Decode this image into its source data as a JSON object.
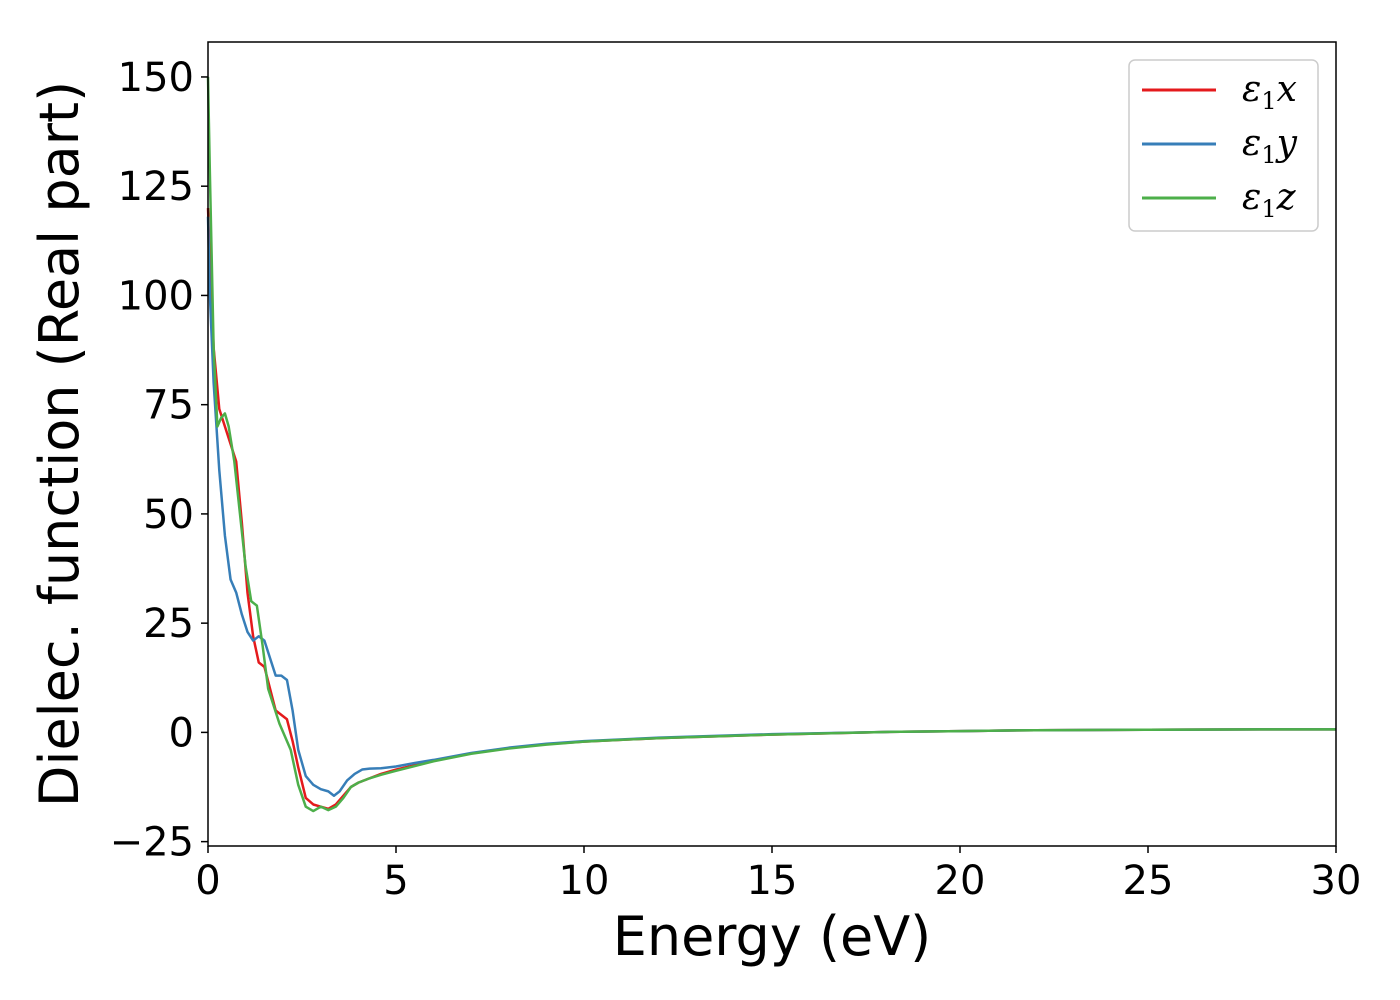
{
  "chart_data": {
    "type": "line",
    "xlabel": "Energy (eV)",
    "ylabel": "Dielec. function (Real part)",
    "xlim": [
      0,
      30
    ],
    "ylim": [
      -26,
      158
    ],
    "x_ticks": [
      0,
      5,
      10,
      15,
      20,
      25,
      30
    ],
    "y_ticks": [
      -25,
      0,
      25,
      50,
      75,
      100,
      125,
      150
    ],
    "x_tick_labels": [
      "0",
      "5",
      "10",
      "15",
      "20",
      "25",
      "30"
    ],
    "y_tick_labels": [
      "−25",
      "0",
      "25",
      "50",
      "75",
      "100",
      "125",
      "150"
    ],
    "grid": false,
    "legend_position": "top-right",
    "series": [
      {
        "name": "ε₁x",
        "legend_main": "ε",
        "legend_sub": "1",
        "legend_var": "x",
        "color": "#e41a1c",
        "x": [
          0,
          0.05,
          0.15,
          0.3,
          0.45,
          0.6,
          0.75,
          0.9,
          1.05,
          1.2,
          1.35,
          1.5,
          1.65,
          1.8,
          1.95,
          2.1,
          2.25,
          2.4,
          2.6,
          2.8,
          3.0,
          3.2,
          3.4,
          3.6,
          3.8,
          4.0,
          4.3,
          4.6,
          5.0,
          5.5,
          6.0,
          7.0,
          8.0,
          9.0,
          10,
          12,
          15,
          18,
          20,
          22,
          25,
          28,
          30
        ],
        "y": [
          120,
          108,
          88,
          74,
          70,
          66,
          62,
          48,
          32,
          22,
          16,
          15,
          10,
          5,
          4,
          3,
          -2,
          -8,
          -15,
          -16.5,
          -17,
          -17.5,
          -16.5,
          -14.5,
          -12.5,
          -11.5,
          -10.5,
          -9.5,
          -8.5,
          -7.5,
          -6.5,
          -4.8,
          -3.6,
          -2.7,
          -2.1,
          -1.3,
          -0.5,
          0.1,
          0.3,
          0.5,
          0.6,
          0.7,
          0.7
        ]
      },
      {
        "name": "ε₁y",
        "legend_main": "ε",
        "legend_sub": "1",
        "legend_var": "y",
        "color": "#377eb8",
        "x": [
          0,
          0.05,
          0.15,
          0.3,
          0.45,
          0.6,
          0.75,
          0.9,
          1.05,
          1.2,
          1.35,
          1.5,
          1.65,
          1.8,
          1.95,
          2.1,
          2.25,
          2.4,
          2.6,
          2.8,
          3.0,
          3.2,
          3.35,
          3.5,
          3.7,
          3.9,
          4.1,
          4.3,
          4.6,
          5.0,
          5.5,
          6.0,
          7.0,
          8.0,
          9.0,
          10,
          12,
          15,
          18,
          20,
          22,
          25,
          28,
          30
        ],
        "y": [
          118,
          100,
          80,
          60,
          45,
          35,
          32,
          27,
          23,
          21,
          22,
          21,
          17,
          13,
          13,
          12,
          5,
          -4,
          -10,
          -12,
          -13,
          -13.5,
          -14.5,
          -13.5,
          -11,
          -9.5,
          -8.5,
          -8.3,
          -8.2,
          -7.8,
          -7,
          -6.3,
          -4.7,
          -3.5,
          -2.6,
          -2.0,
          -1.2,
          -0.4,
          0.1,
          0.3,
          0.5,
          0.6,
          0.7,
          0.7
        ]
      },
      {
        "name": "ε₁z",
        "legend_main": "ε",
        "legend_sub": "1",
        "legend_var": "z",
        "color": "#4daf4a",
        "x": [
          0,
          0.05,
          0.15,
          0.25,
          0.35,
          0.45,
          0.55,
          0.7,
          0.85,
          1.0,
          1.15,
          1.3,
          1.45,
          1.6,
          1.75,
          1.9,
          2.05,
          2.2,
          2.4,
          2.6,
          2.8,
          3.0,
          3.2,
          3.4,
          3.6,
          3.8,
          4.0,
          4.3,
          4.6,
          5.0,
          5.5,
          6.0,
          7.0,
          8.0,
          9.0,
          10,
          12,
          15,
          18,
          20,
          22,
          25,
          28,
          30
        ],
        "y": [
          150,
          128,
          88,
          70,
          72,
          73,
          70,
          62,
          50,
          38,
          30,
          29,
          20,
          10,
          6,
          2,
          -1,
          -4,
          -12,
          -17,
          -18,
          -17,
          -17.8,
          -17,
          -15,
          -12.5,
          -11.5,
          -10.5,
          -9.7,
          -8.8,
          -7.7,
          -6.6,
          -4.9,
          -3.7,
          -2.8,
          -2.1,
          -1.3,
          -0.5,
          0.1,
          0.3,
          0.5,
          0.6,
          0.7,
          0.7
        ]
      }
    ]
  }
}
